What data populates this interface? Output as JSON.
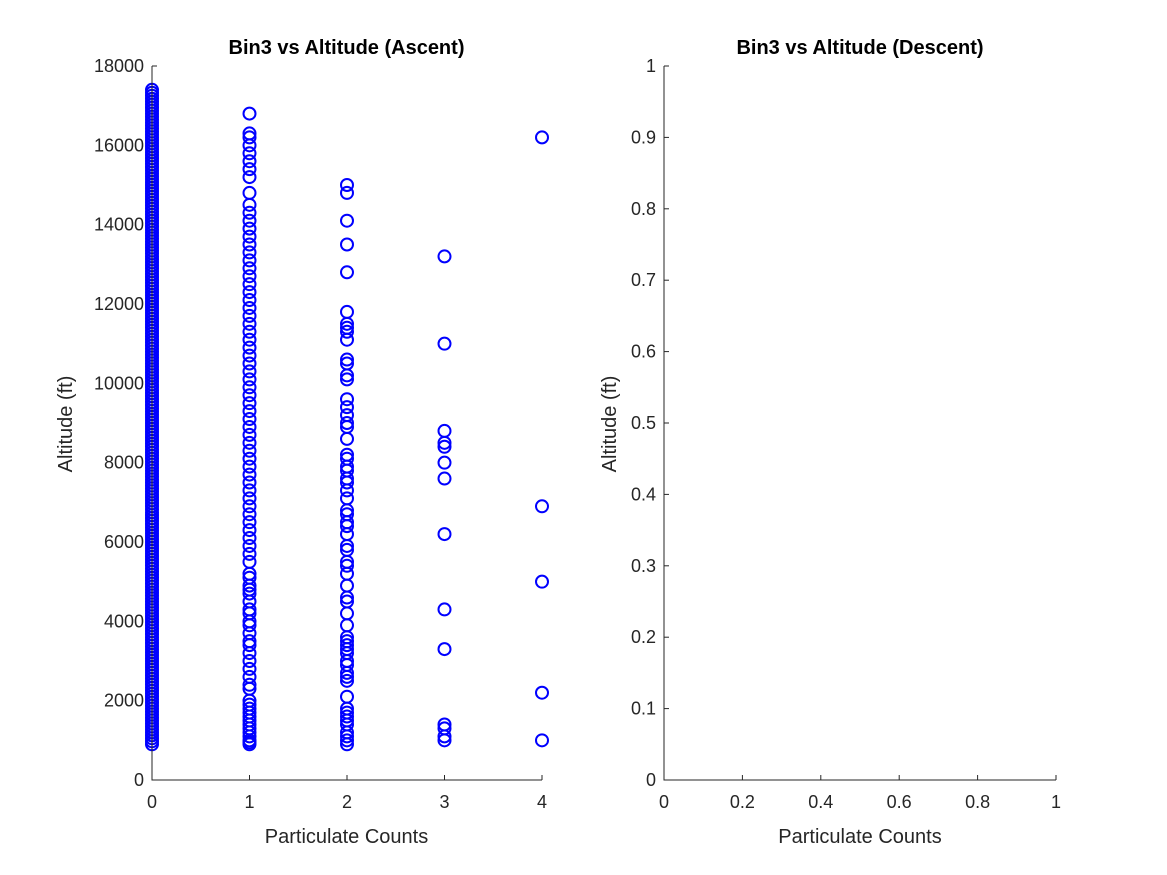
{
  "chart_data": [
    {
      "type": "scatter",
      "title": "Bin3 vs Altitude (Ascent)",
      "xlabel": "Particulate Counts",
      "ylabel": "Altitude (ft)",
      "xlim": [
        0,
        4
      ],
      "ylim": [
        0,
        18000
      ],
      "xticks": [
        0,
        1,
        2,
        3,
        4
      ],
      "yticks": [
        0,
        2000,
        4000,
        6000,
        8000,
        10000,
        12000,
        14000,
        16000,
        18000
      ],
      "grid": false,
      "marker": "circle-open",
      "color": "#0000ff",
      "series": [
        {
          "x": 0,
          "y_range": [
            900,
            17400
          ],
          "y_step": 75
        },
        {
          "x": 1,
          "y": [
            900,
            950,
            1000,
            1100,
            1200,
            1300,
            1400,
            1500,
            1600,
            1700,
            1800,
            1900,
            2000,
            2300,
            2400,
            2600,
            2800,
            3000,
            3200,
            3400,
            3500,
            3700,
            3900,
            4000,
            4200,
            4300,
            4500,
            4700,
            4800,
            4900,
            5100,
            5200,
            5500,
            5700,
            5900,
            6100,
            6300,
            6500,
            6700,
            6900,
            7100,
            7300,
            7500,
            7700,
            7900,
            8100,
            8300,
            8500,
            8700,
            8900,
            9100,
            9300,
            9500,
            9700,
            9900,
            10100,
            10300,
            10500,
            10700,
            10900,
            11100,
            11300,
            11500,
            11700,
            11900,
            12100,
            12300,
            12500,
            12700,
            12900,
            13100,
            13300,
            13500,
            13700,
            13900,
            14100,
            14300,
            14500,
            14800,
            15200,
            15400,
            15600,
            15800,
            16000,
            16200,
            16300,
            16800
          ]
        },
        {
          "x": 2,
          "y": [
            900,
            1000,
            1100,
            1200,
            1400,
            1500,
            1600,
            1700,
            1800,
            2100,
            2500,
            2600,
            2700,
            2900,
            3000,
            3200,
            3300,
            3400,
            3500,
            3600,
            3900,
            4200,
            4500,
            4600,
            4900,
            5200,
            5400,
            5500,
            5800,
            5900,
            6200,
            6400,
            6500,
            6700,
            6800,
            7100,
            7300,
            7500,
            7600,
            7800,
            7900,
            8100,
            8200,
            8600,
            8900,
            9000,
            9200,
            9400,
            9600,
            10100,
            10200,
            10500,
            10600,
            11100,
            11300,
            11400,
            11500,
            11800,
            12800,
            13500,
            14100,
            14800,
            15000
          ]
        },
        {
          "x": 3,
          "y": [
            1000,
            1100,
            1300,
            1400,
            3300,
            4300,
            6200,
            7600,
            8000,
            8400,
            8500,
            8800,
            11000,
            13200
          ]
        },
        {
          "x": 4,
          "y": [
            1000,
            2200,
            5000,
            6900,
            16200
          ]
        }
      ]
    },
    {
      "type": "scatter",
      "title": "Bin3 vs Altitude (Descent)",
      "xlabel": "Particulate Counts",
      "ylabel": "Altitude (ft)",
      "xlim": [
        0,
        1
      ],
      "ylim": [
        0,
        1
      ],
      "xticks": [
        0,
        0.2,
        0.4,
        0.6,
        0.8,
        1
      ],
      "yticks": [
        0,
        0.1,
        0.2,
        0.3,
        0.4,
        0.5,
        0.6,
        0.7,
        0.8,
        0.9,
        1
      ],
      "grid": false,
      "series": []
    }
  ]
}
